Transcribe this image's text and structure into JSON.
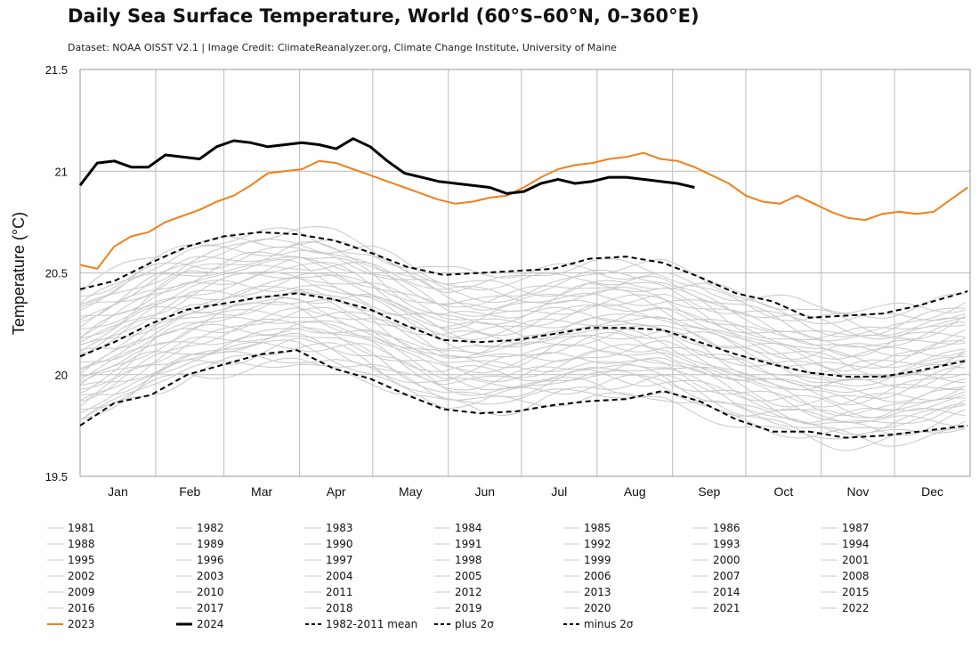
{
  "title": "Daily Sea Surface Temperature, World (60°S–60°N, 0–360°E)",
  "subtitle": "Dataset: NOAA OISST V2.1 | Image Credit: ClimateReanalyzer.org, Climate Change Institute, University of Maine",
  "colors": {
    "grid": "#bbbbbb",
    "history": "#c8c8c8",
    "y2023": "#f0801a",
    "y2024": "#000000",
    "mean": "#000000"
  },
  "chart_data": {
    "type": "line",
    "title": "Daily Sea Surface Temperature, World (60°S–60°N, 0–360°E)",
    "xlabel": "",
    "ylabel": "Temperature (°C)",
    "ylim": [
      19.5,
      21.5
    ],
    "yticks": [
      "21.5",
      "21",
      "20.5",
      "20",
      "19.5"
    ],
    "ytick_values": [
      21.5,
      21,
      20.5,
      20,
      19.5
    ],
    "xlim": [
      1,
      366
    ],
    "month_labels": [
      "Jan",
      "Feb",
      "Mar",
      "Apr",
      "May",
      "Jun",
      "Jul",
      "Aug",
      "Sep",
      "Oct",
      "Nov",
      "Dec"
    ],
    "history_years": [
      "1981",
      "1982",
      "1983",
      "1984",
      "1985",
      "1986",
      "1987",
      "1988",
      "1989",
      "1990",
      "1991",
      "1992",
      "1993",
      "1994",
      "1995",
      "1996",
      "1997",
      "1998",
      "1999",
      "2000",
      "2001",
      "2002",
      "2003",
      "2004",
      "2005",
      "2006",
      "2007",
      "2008",
      "2009",
      "2010",
      "2011",
      "2012",
      "2013",
      "2014",
      "2015",
      "2016",
      "2017",
      "2018",
      "2019",
      "2020",
      "2021",
      "2022"
    ],
    "series": [
      {
        "name": "2023",
        "style": "orange-bold",
        "x": [
          1,
          8,
          15,
          22,
          29,
          36,
          43,
          50,
          57,
          64,
          71,
          78,
          85,
          92,
          99,
          106,
          113,
          120,
          127,
          134,
          141,
          148,
          155,
          162,
          169,
          176,
          183,
          190,
          197,
          204,
          211,
          218,
          225,
          232,
          239,
          246,
          253,
          260,
          267,
          274,
          281,
          288,
          295,
          302,
          309,
          316,
          323,
          330,
          337,
          344,
          351,
          358,
          365
        ],
        "values": [
          20.54,
          20.52,
          20.63,
          20.68,
          20.7,
          20.75,
          20.78,
          20.81,
          20.85,
          20.88,
          20.93,
          20.99,
          21.0,
          21.01,
          21.05,
          21.04,
          21.01,
          20.98,
          20.95,
          20.92,
          20.89,
          20.86,
          20.84,
          20.85,
          20.87,
          20.88,
          20.92,
          20.97,
          21.01,
          21.03,
          21.04,
          21.06,
          21.07,
          21.09,
          21.06,
          21.05,
          21.02,
          20.98,
          20.94,
          20.88,
          20.85,
          20.84,
          20.88,
          20.84,
          20.8,
          20.77,
          20.76,
          20.79,
          20.8,
          20.79,
          20.8,
          20.86,
          20.92
        ]
      },
      {
        "name": "2024",
        "style": "black-bold",
        "x": [
          1,
          8,
          15,
          22,
          29,
          36,
          43,
          50,
          57,
          64,
          71,
          78,
          85,
          92,
          99,
          106,
          113,
          120,
          127,
          134,
          141,
          148,
          155,
          162,
          169,
          176,
          183,
          190,
          197,
          204,
          211,
          218,
          225,
          232,
          239,
          246,
          253
        ],
        "values": [
          20.93,
          21.04,
          21.05,
          21.02,
          21.02,
          21.08,
          21.07,
          21.06,
          21.12,
          21.15,
          21.14,
          21.12,
          21.13,
          21.14,
          21.13,
          21.11,
          21.16,
          21.12,
          21.05,
          20.99,
          20.97,
          20.95,
          20.94,
          20.93,
          20.92,
          20.89,
          20.9,
          20.94,
          20.96,
          20.94,
          20.95,
          20.97,
          20.97,
          20.96,
          20.95,
          20.94,
          20.92
        ]
      },
      {
        "name": "1982-2011 mean",
        "style": "dashed",
        "x": [
          1,
          15,
          30,
          45,
          60,
          75,
          90,
          105,
          120,
          135,
          150,
          165,
          180,
          195,
          210,
          225,
          240,
          255,
          270,
          285,
          300,
          315,
          330,
          345,
          365
        ],
        "values": [
          20.09,
          20.16,
          20.25,
          20.32,
          20.35,
          20.38,
          20.4,
          20.37,
          20.32,
          20.24,
          20.17,
          20.16,
          20.17,
          20.2,
          20.23,
          20.23,
          20.22,
          20.16,
          20.1,
          20.05,
          20.01,
          19.99,
          19.99,
          20.02,
          20.07
        ]
      },
      {
        "name": "plus 2σ",
        "style": "dashed",
        "x": [
          1,
          15,
          30,
          45,
          60,
          75,
          90,
          105,
          120,
          135,
          150,
          165,
          180,
          195,
          210,
          225,
          240,
          255,
          270,
          285,
          300,
          315,
          330,
          345,
          365
        ],
        "values": [
          20.42,
          20.46,
          20.55,
          20.63,
          20.68,
          20.7,
          20.69,
          20.66,
          20.6,
          20.53,
          20.49,
          20.5,
          20.51,
          20.52,
          20.57,
          20.58,
          20.55,
          20.48,
          20.4,
          20.36,
          20.28,
          20.29,
          20.3,
          20.34,
          20.41
        ]
      },
      {
        "name": "minus 2σ",
        "style": "dashed",
        "x": [
          1,
          15,
          30,
          45,
          60,
          75,
          90,
          105,
          120,
          135,
          150,
          165,
          180,
          195,
          210,
          225,
          240,
          255,
          270,
          285,
          300,
          315,
          330,
          345,
          365
        ],
        "values": [
          19.75,
          19.86,
          19.9,
          20.0,
          20.05,
          20.1,
          20.12,
          20.03,
          19.98,
          19.9,
          19.83,
          19.81,
          19.82,
          19.85,
          19.87,
          19.88,
          19.92,
          19.87,
          19.78,
          19.72,
          19.72,
          19.69,
          19.7,
          19.72,
          19.75
        ]
      }
    ]
  },
  "legend": {
    "items": [
      "1981",
      "1982",
      "1983",
      "1984",
      "1985",
      "1986",
      "1987",
      "1988",
      "1989",
      "1990",
      "1991",
      "1992",
      "1993",
      "1994",
      "1995",
      "1996",
      "1997",
      "1998",
      "1999",
      "2000",
      "2001",
      "2002",
      "2003",
      "2004",
      "2005",
      "2006",
      "2007",
      "2008",
      "2009",
      "2010",
      "2011",
      "2012",
      "2013",
      "2014",
      "2015",
      "2016",
      "2017",
      "2018",
      "2019",
      "2020",
      "2021",
      "2022",
      "2023",
      "2024",
      "1982-2011 mean",
      "plus 2σ",
      "minus 2σ"
    ]
  }
}
